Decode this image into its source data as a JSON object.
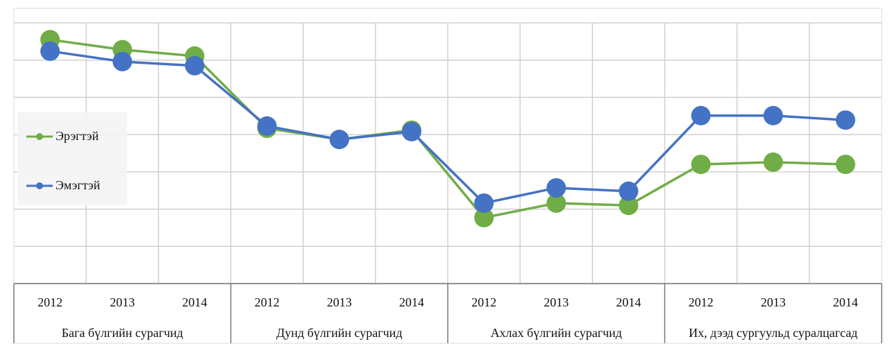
{
  "chart_data": {
    "type": "line",
    "categories": [
      "2012",
      "2013",
      "2014",
      "2012",
      "2013",
      "2014",
      "2012",
      "2013",
      "2014",
      "2012",
      "2013",
      "2014"
    ],
    "groups": [
      "Бага бүлгийн сурагчид",
      "Дунд бүлгийн сурагчид",
      "Ахлах бүлгийн сурагчид",
      "Их, дээд сургуульд суралцагсад"
    ],
    "series": [
      {
        "name": "Эрэгтэй",
        "color": "#70ad47",
        "values": [
          6.55,
          6.28,
          6.11,
          4.17,
          3.87,
          4.12,
          1.77,
          2.16,
          2.1,
          3.2,
          3.26,
          3.2
        ]
      },
      {
        "name": "Эмэгтэй",
        "color": "#4472c4",
        "values": [
          6.24,
          5.96,
          5.85,
          4.23,
          3.87,
          4.08,
          2.16,
          2.57,
          2.48,
          4.51,
          4.51,
          4.39
        ]
      }
    ],
    "ylim": [
      0,
      7
    ],
    "yticks": [
      0,
      1,
      2,
      3,
      4,
      5,
      6,
      7
    ],
    "grid": true,
    "legend": "left"
  }
}
